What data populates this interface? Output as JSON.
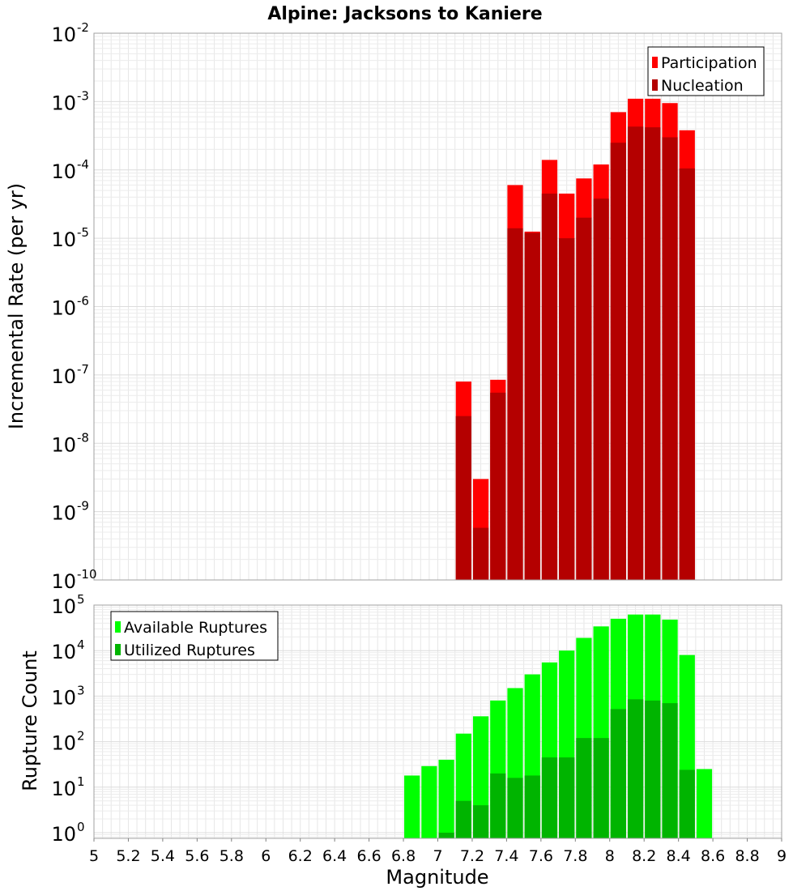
{
  "chart_data": [
    {
      "type": "bar",
      "title": "Alpine: Jacksons to Kaniere",
      "ylabel": "Incremental Rate (per yr)",
      "xlabel": "",
      "yscale": "log",
      "ylim": [
        1e-10,
        0.01
      ],
      "xlim": [
        5,
        9
      ],
      "grid": true,
      "legend": "top-right",
      "bin_width": 0.1,
      "x": [
        7.15,
        7.25,
        7.35,
        7.45,
        7.55,
        7.65,
        7.75,
        7.85,
        7.95,
        8.05,
        8.15,
        8.25,
        8.35,
        8.45
      ],
      "series": [
        {
          "name": "Participation",
          "color": "#ff0000",
          "values": [
            8e-08,
            3e-09,
            8.5e-08,
            6e-05,
            1.25e-05,
            0.00014,
            4.5e-05,
            7.5e-05,
            0.00012,
            0.0007,
            0.0011,
            0.0011,
            0.00095,
            0.00038
          ]
        },
        {
          "name": "Nucleation",
          "color": "#b40000",
          "values": [
            2.5e-08,
            5.8e-10,
            5.5e-08,
            1.4e-05,
            1.2e-05,
            4.5e-05,
            1e-05,
            2e-05,
            3.8e-05,
            0.00025,
            0.00043,
            0.00042,
            0.0003,
            0.000105
          ]
        }
      ],
      "y_tick_base": "10",
      "y_tick_exponents": [
        "-10",
        "-9",
        "-8",
        "-7",
        "-6",
        "-5",
        "-4",
        "-3",
        "-2"
      ]
    },
    {
      "type": "bar",
      "title": "",
      "ylabel": "Rupture Count",
      "xlabel": "Magnitude",
      "yscale": "log",
      "ylim": [
        0.75,
        100000
      ],
      "xlim": [
        5,
        9
      ],
      "grid": true,
      "legend": "top-left",
      "bin_width": 0.1,
      "x": [
        6.85,
        6.95,
        7.05,
        7.15,
        7.25,
        7.35,
        7.45,
        7.55,
        7.65,
        7.75,
        7.85,
        7.95,
        8.05,
        8.15,
        8.25,
        8.35,
        8.45,
        8.55
      ],
      "series": [
        {
          "name": "Available Ruptures",
          "color": "#00ff00",
          "values": [
            18,
            29,
            40,
            150,
            360,
            800,
            1500,
            3000,
            5500,
            10000,
            19000,
            34000,
            50000,
            62000,
            62000,
            48000,
            8000,
            25
          ]
        },
        {
          "name": "Utilized Ruptures",
          "color": "#00b400",
          "values": [
            0,
            0,
            1,
            5,
            4,
            20,
            16,
            18,
            45,
            45,
            120,
            120,
            520,
            850,
            800,
            700,
            24,
            0
          ]
        }
      ],
      "y_tick_base": "10",
      "y_tick_exponents": [
        "0",
        "1",
        "2",
        "3",
        "4",
        "5"
      ],
      "x_ticks": [
        "5",
        "5.2",
        "5.4",
        "5.6",
        "5.8",
        "6",
        "6.2",
        "6.4",
        "6.6",
        "6.8",
        "7",
        "7.2",
        "7.4",
        "7.6",
        "7.8",
        "8",
        "8.2",
        "8.4",
        "8.6",
        "8.8",
        "9"
      ]
    }
  ]
}
